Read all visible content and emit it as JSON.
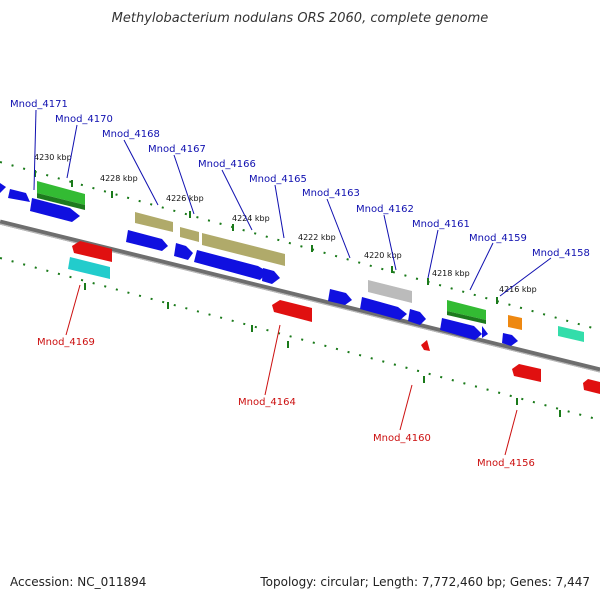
{
  "title": "Methylobacterium nodulans ORS 2060, complete genome",
  "accession": "Accession: NC_011894",
  "summary": "Topology: circular; Length: 7,772,460 bp; Genes: 7,447",
  "ticks": [
    "4230 kbp",
    "4228 kbp",
    "4226 kbp",
    "4224 kbp",
    "4222 kbp",
    "4220 kbp",
    "4218 kbp",
    "4216 kbp"
  ],
  "genes_top": [
    "Mnod_4171",
    "Mnod_4170",
    "Mnod_4168",
    "Mnod_4167",
    "Mnod_4166",
    "Mnod_4165",
    "Mnod_4163",
    "Mnod_4162",
    "Mnod_4161",
    "Mnod_4159",
    "Mnod_4158"
  ],
  "genes_bottom": [
    "Mnod_4169",
    "Mnod_4164",
    "Mnod_4160",
    "Mnod_4156"
  ],
  "colors": {
    "label_top": "#1010b0",
    "label_bottom": "#cc1010",
    "backbone": "#7a7a7a",
    "tick": "#1a7a1a",
    "cds": "#1010e0",
    "rrna_trna": "#b0aa6a",
    "red": "#e01010",
    "green": "#33bb33",
    "cyan": "#22cccc",
    "gray": "#bbbbbb",
    "orange": "#ee8811",
    "teal": "#33ddaa"
  }
}
